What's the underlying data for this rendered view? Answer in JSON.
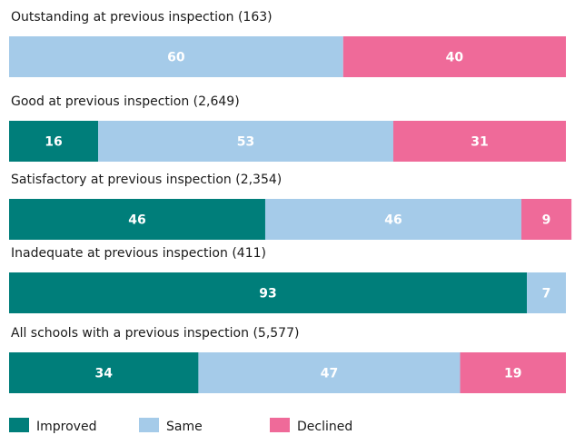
{
  "chart_data": {
    "type": "stacked-bar-horizontal",
    "categories": [
      "Outstanding at previous inspection (163)",
      "Good at previous inspection (2,649)",
      "Satisfactory at previous inspection (2,354)",
      "Inadequate at previous inspection (411)",
      "All schools with a previous inspection (5,577)"
    ],
    "series": [
      {
        "name": "Improved",
        "color": "#007e7a",
        "values": [
          null,
          16,
          46,
          93,
          34
        ]
      },
      {
        "name": "Same",
        "color": "#a5cbe9",
        "values": [
          60,
          53,
          46,
          7,
          47
        ]
      },
      {
        "name": "Declined",
        "color": "#ef6a99",
        "values": [
          40,
          31,
          9,
          null,
          19
        ]
      }
    ],
    "xlim": [
      0,
      100
    ]
  }
}
